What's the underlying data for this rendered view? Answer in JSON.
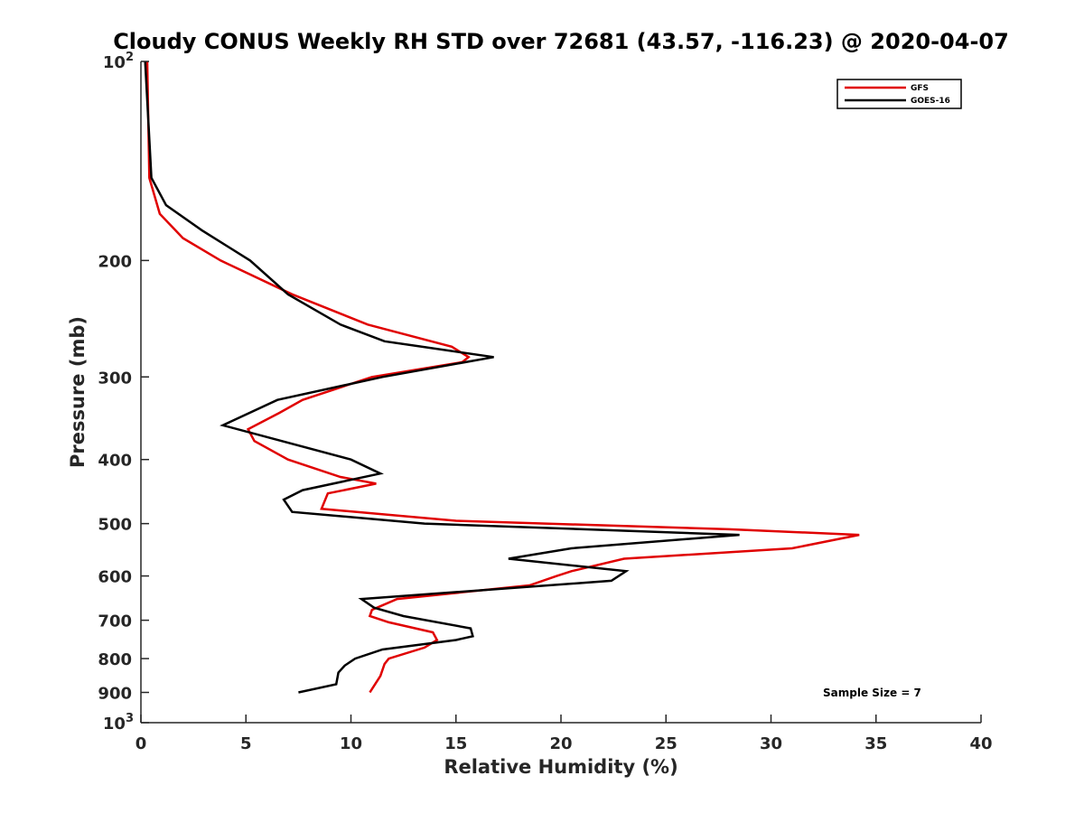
{
  "chart_data": {
    "type": "line",
    "title": "Cloudy CONUS Weekly RH STD over 72681 (43.57, -116.23) @ 2020-04-07",
    "xlabel": "Relative Humidity (%)",
    "ylabel": "Pressure (mb)",
    "xlim": [
      0,
      40
    ],
    "ylim": [
      100,
      1000
    ],
    "y_scale": "log",
    "y_reversed": true,
    "grid": false,
    "legend_position": "top-right",
    "x_ticks": [
      0,
      5,
      10,
      15,
      20,
      25,
      30,
      35,
      40
    ],
    "x_tick_labels": [
      "0",
      "5",
      "10",
      "15",
      "20",
      "25",
      "30",
      "35",
      "40"
    ],
    "y_ticks": [
      {
        "value": 100,
        "base": "10",
        "exp": "2"
      },
      {
        "value": 200,
        "label": "200"
      },
      {
        "value": 300,
        "label": "300"
      },
      {
        "value": 400,
        "label": "400"
      },
      {
        "value": 500,
        "label": "500"
      },
      {
        "value": 600,
        "label": "600"
      },
      {
        "value": 700,
        "label": "700"
      },
      {
        "value": 800,
        "label": "800"
      },
      {
        "value": 900,
        "label": "900"
      },
      {
        "value": 1000,
        "base": "10",
        "exp": "3"
      }
    ],
    "series": [
      {
        "name": "GFS",
        "color": "#e00000",
        "points": [
          [
            0.3,
            100
          ],
          [
            0.4,
            150
          ],
          [
            0.9,
            170
          ],
          [
            2.0,
            185
          ],
          [
            3.8,
            200
          ],
          [
            7.2,
            225
          ],
          [
            10.8,
            250
          ],
          [
            14.8,
            270
          ],
          [
            15.6,
            280
          ],
          [
            15.3,
            285
          ],
          [
            11.0,
            300
          ],
          [
            7.7,
            325
          ],
          [
            6.6,
            340
          ],
          [
            5.1,
            360
          ],
          [
            5.4,
            375
          ],
          [
            7.0,
            400
          ],
          [
            9.5,
            425
          ],
          [
            11.2,
            435
          ],
          [
            8.9,
            450
          ],
          [
            8.6,
            475
          ],
          [
            15.0,
            495
          ],
          [
            28.0,
            510
          ],
          [
            34.2,
            520
          ],
          [
            31.0,
            545
          ],
          [
            23.0,
            565
          ],
          [
            20.5,
            590
          ],
          [
            19.8,
            600
          ],
          [
            18.5,
            620
          ],
          [
            12.2,
            650
          ],
          [
            11.0,
            675
          ],
          [
            10.9,
            690
          ],
          [
            11.8,
            705
          ],
          [
            13.9,
            730
          ],
          [
            14.1,
            750
          ],
          [
            13.5,
            770
          ],
          [
            11.8,
            800
          ],
          [
            11.6,
            815
          ],
          [
            11.4,
            850
          ],
          [
            10.9,
            900
          ]
        ]
      },
      {
        "name": "GOES-16",
        "color": "#000000",
        "points": [
          [
            0.2,
            100
          ],
          [
            0.5,
            150
          ],
          [
            1.2,
            165
          ],
          [
            2.9,
            180
          ],
          [
            5.2,
            200
          ],
          [
            7.0,
            225
          ],
          [
            9.5,
            250
          ],
          [
            11.6,
            265
          ],
          [
            16.8,
            280
          ],
          [
            11.5,
            300
          ],
          [
            6.5,
            325
          ],
          [
            3.9,
            355
          ],
          [
            10.0,
            400
          ],
          [
            11.4,
            420
          ],
          [
            7.7,
            445
          ],
          [
            6.8,
            460
          ],
          [
            7.2,
            480
          ],
          [
            13.5,
            500
          ],
          [
            28.5,
            520
          ],
          [
            20.5,
            545
          ],
          [
            17.5,
            565
          ],
          [
            23.1,
            590
          ],
          [
            22.4,
            610
          ],
          [
            10.5,
            650
          ],
          [
            11.1,
            670
          ],
          [
            12.5,
            690
          ],
          [
            15.7,
            720
          ],
          [
            15.8,
            740
          ],
          [
            15.0,
            750
          ],
          [
            11.5,
            775
          ],
          [
            10.2,
            800
          ],
          [
            9.7,
            820
          ],
          [
            9.4,
            840
          ],
          [
            9.3,
            875
          ],
          [
            7.5,
            900
          ]
        ]
      }
    ],
    "annotation": "Sample Size = 7"
  }
}
